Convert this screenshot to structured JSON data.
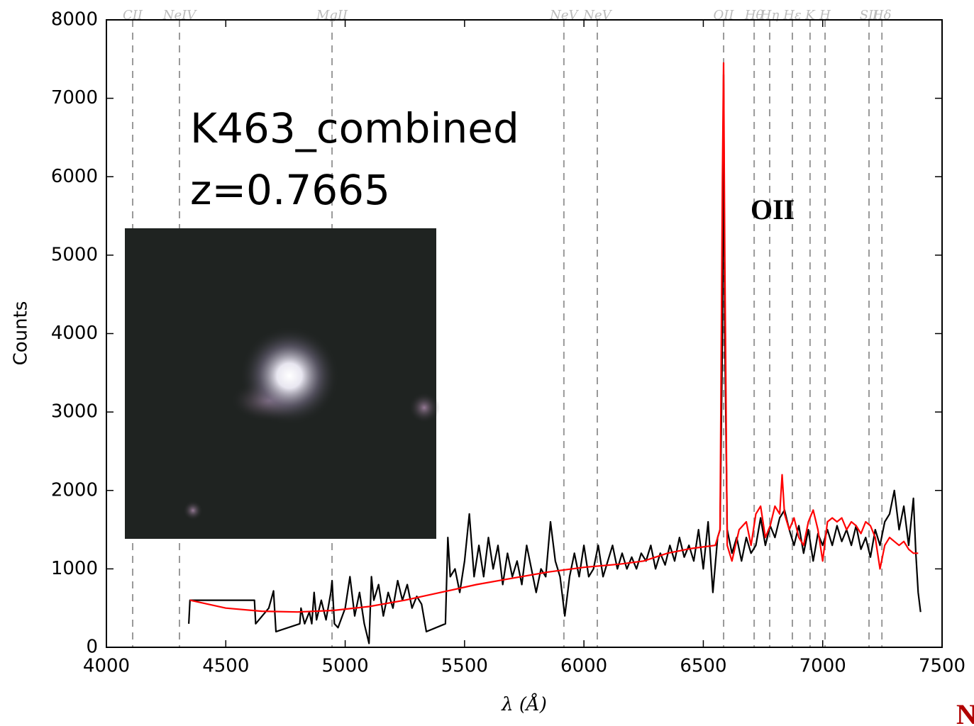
{
  "chart_data": {
    "type": "line",
    "xlabel": "λ (Å)",
    "ylabel": "Counts",
    "annotations": [
      "K463_combined",
      "z=0.7665",
      "OII"
    ],
    "corner_mark": "N",
    "xlim": [
      4000,
      7500
    ],
    "xticks": [
      4000,
      4500,
      5000,
      5500,
      6000,
      6500,
      7000,
      7500
    ],
    "ylim": [
      0,
      8000
    ],
    "yticks": [
      0,
      1000,
      2000,
      3000,
      4000,
      5000,
      6000,
      7000,
      8000
    ],
    "lines": [
      {
        "name": "CII",
        "x": 4110
      },
      {
        "name": "NeIV",
        "x": 4306
      },
      {
        "name": "MgII",
        "x": 4945
      },
      {
        "name": "NeV",
        "x": 5916
      },
      {
        "name": "NeV",
        "x": 6056
      },
      {
        "name": "OII",
        "x": 6585
      },
      {
        "name": "Hθ",
        "x": 6713
      },
      {
        "name": "Hη",
        "x": 6778
      },
      {
        "name": "Hε",
        "x": 6873
      },
      {
        "name": "K",
        "x": 6947
      },
      {
        "name": "H",
        "x": 7010
      },
      {
        "name": "SII",
        "x": 7194
      },
      {
        "name": "Hδ",
        "x": 7248
      }
    ],
    "series": [
      {
        "color": "#000000",
        "x": [
          4345,
          4350,
          4620,
          4625,
          4680,
          4700,
          4710,
          4810,
          4815,
          4830,
          4850,
          4860,
          4870,
          4880,
          4900,
          4920,
          4940,
          4945,
          4955,
          4970,
          5000,
          5020,
          5040,
          5060,
          5080,
          5100,
          5110,
          5120,
          5140,
          5160,
          5180,
          5200,
          5220,
          5240,
          5260,
          5280,
          5300,
          5320,
          5340,
          5420,
          5430,
          5440,
          5460,
          5480,
          5500,
          5520,
          5540,
          5560,
          5580,
          5600,
          5620,
          5640,
          5660,
          5680,
          5700,
          5720,
          5740,
          5760,
          5780,
          5800,
          5820,
          5840,
          5860,
          5880,
          5900,
          5920,
          5940,
          5960,
          5980,
          6000,
          6020,
          6040,
          6060,
          6080,
          6100,
          6120,
          6140,
          6160,
          6180,
          6200,
          6220,
          6240,
          6260,
          6280,
          6300,
          6320,
          6340,
          6360,
          6380,
          6400,
          6420,
          6440,
          6460,
          6480,
          6500,
          6520,
          6540,
          6560,
          6570,
          6580,
          6585,
          6590,
          6600,
          6620,
          6640,
          6660,
          6680,
          6700,
          6720,
          6740,
          6760,
          6780,
          6800,
          6820,
          6840,
          6860,
          6880,
          6900,
          6920,
          6940,
          6960,
          6980,
          7000,
          7020,
          7040,
          7060,
          7080,
          7100,
          7120,
          7140,
          7160,
          7180,
          7200,
          7220,
          7240,
          7260,
          7280,
          7300,
          7320,
          7340,
          7360,
          7380,
          7390,
          7400,
          7410
        ],
        "values": [
          300,
          600,
          600,
          300,
          500,
          720,
          200,
          300,
          500,
          300,
          450,
          300,
          700,
          350,
          600,
          350,
          700,
          850,
          300,
          250,
          500,
          900,
          400,
          700,
          300,
          50,
          900,
          600,
          800,
          400,
          700,
          500,
          850,
          600,
          800,
          500,
          650,
          550,
          200,
          300,
          1400,
          900,
          1000,
          700,
          1100,
          1700,
          900,
          1300,
          900,
          1400,
          1000,
          1300,
          800,
          1200,
          900,
          1100,
          800,
          1300,
          1000,
          700,
          1000,
          900,
          1600,
          1100,
          900,
          400,
          900,
          1200,
          900,
          1300,
          900,
          1000,
          1300,
          900,
          1100,
          1300,
          1000,
          1200,
          1000,
          1150,
          1000,
          1200,
          1100,
          1300,
          1000,
          1200,
          1050,
          1300,
          1100,
          1400,
          1150,
          1300,
          1100,
          1500,
          1000,
          1600,
          700,
          1400,
          1500,
          4000,
          7300,
          4000,
          1500,
          1200,
          1400,
          1100,
          1400,
          1200,
          1300,
          1650,
          1300,
          1550,
          1400,
          1650,
          1750,
          1500,
          1300,
          1550,
          1200,
          1500,
          1100,
          1450,
          1300,
          1500,
          1300,
          1550,
          1350,
          1500,
          1300,
          1550,
          1250,
          1400,
          1150,
          1500,
          1300,
          1600,
          1700,
          2000,
          1500,
          1800,
          1300,
          1900,
          1200,
          700,
          450
        ]
      },
      {
        "color": "#ff0000",
        "x": [
          4350,
          4500,
          4650,
          4800,
          4950,
          5100,
          5250,
          5400,
          5550,
          5700,
          5850,
          6000,
          6150,
          6250,
          6300,
          6350,
          6400,
          6450,
          6500,
          6550,
          6570,
          6580,
          6585,
          6590,
          6600,
          6620,
          6650,
          6680,
          6700,
          6720,
          6740,
          6760,
          6780,
          6800,
          6820,
          6830,
          6840,
          6860,
          6880,
          6900,
          6920,
          6940,
          6960,
          6980,
          7000,
          7020,
          7040,
          7060,
          7080,
          7100,
          7120,
          7140,
          7160,
          7180,
          7200,
          7220,
          7240,
          7260,
          7280,
          7300,
          7320,
          7340,
          7360,
          7380,
          7400
        ],
        "values": [
          600,
          500,
          460,
          450,
          470,
          520,
          600,
          700,
          800,
          880,
          960,
          1020,
          1060,
          1100,
          1150,
          1200,
          1230,
          1260,
          1280,
          1300,
          1500,
          6000,
          7450,
          5000,
          1300,
          1100,
          1500,
          1600,
          1300,
          1700,
          1800,
          1400,
          1550,
          1800,
          1700,
          2200,
          1700,
          1500,
          1650,
          1400,
          1300,
          1600,
          1750,
          1500,
          1100,
          1600,
          1650,
          1600,
          1650,
          1500,
          1600,
          1550,
          1450,
          1600,
          1550,
          1400,
          1000,
          1300,
          1400,
          1350,
          1300,
          1350,
          1250,
          1200,
          1200
        ]
      }
    ]
  }
}
